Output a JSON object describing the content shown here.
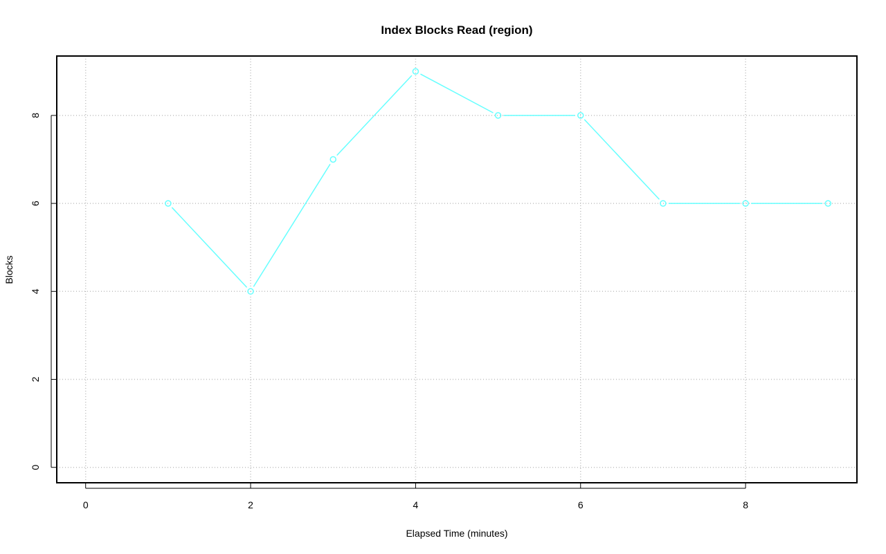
{
  "chart_data": {
    "type": "line",
    "title": "Index Blocks Read (region)",
    "xlabel": "Elapsed Time (minutes)",
    "ylabel": "Blocks",
    "x": [
      1,
      2,
      3,
      4,
      5,
      6,
      7,
      8,
      9
    ],
    "series": [
      {
        "values": [
          6,
          4,
          7,
          9,
          8,
          8,
          6,
          6,
          6
        ],
        "color": "#66ffff",
        "marker": "open-circle",
        "style": "lines-and-points"
      }
    ],
    "xlim": [
      -0.35,
      9.35
    ],
    "ylim": [
      -0.35,
      9.35
    ],
    "xticks": [
      "0",
      "2",
      "4",
      "6",
      "8"
    ],
    "yticks": [
      "0",
      "2",
      "4",
      "6",
      "8"
    ],
    "grid": true,
    "grid_style": "dotted",
    "grid_color": "#bebebe"
  }
}
